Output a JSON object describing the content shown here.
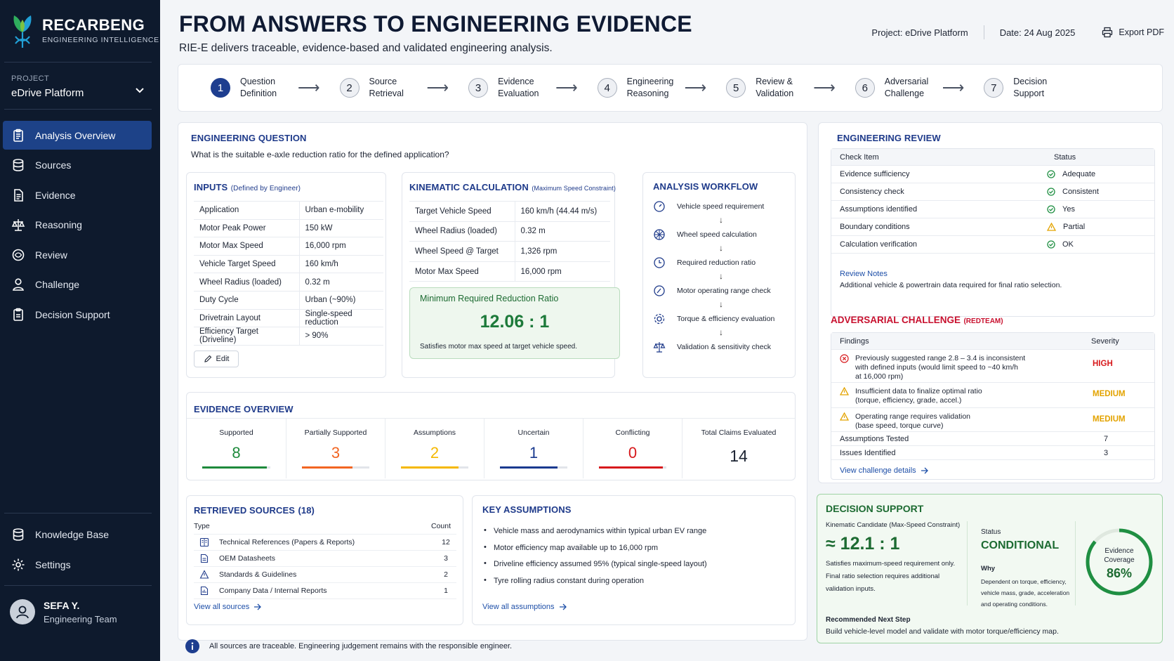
{
  "brand": {
    "name": "RECARBENG",
    "tagline": "ENGINEERING INTELLIGENCE"
  },
  "project": {
    "label": "PROJECT",
    "name": "eDrive Platform"
  },
  "nav": [
    {
      "label": "Analysis Overview",
      "icon": "clipboard-icon",
      "active": true
    },
    {
      "label": "Sources",
      "icon": "database-icon"
    },
    {
      "label": "Evidence",
      "icon": "document-icon"
    },
    {
      "label": "Reasoning",
      "icon": "balance-scale-icon"
    },
    {
      "label": "Review",
      "icon": "review-eye-icon"
    },
    {
      "label": "Challenge",
      "icon": "person-icon"
    },
    {
      "label": "Decision Support",
      "icon": "clipboard-check-icon"
    }
  ],
  "nav_bottom": [
    {
      "label": "Knowledge Base",
      "icon": "database-icon"
    },
    {
      "label": "Settings",
      "icon": "gear-icon"
    }
  ],
  "user": {
    "name": "SEFA Y.",
    "team": "Engineering Team"
  },
  "header": {
    "title": "FROM ANSWERS TO ENGINEERING EVIDENCE",
    "subtitle": "RIE-E delivers traceable, evidence-based and validated engineering analysis.",
    "project": "Project:  eDrive Platform",
    "date": "Date:  24 Aug 2025",
    "export": "Export PDF"
  },
  "steps": [
    {
      "num": "1",
      "label": "Question\nDefinition"
    },
    {
      "num": "2",
      "label": "Source\nRetrieval"
    },
    {
      "num": "3",
      "label": "Evidence\nEvaluation"
    },
    {
      "num": "4",
      "label": "Engineering\nReasoning"
    },
    {
      "num": "5",
      "label": "Review &\nValidation"
    },
    {
      "num": "6",
      "label": "Adversarial\nChallenge"
    },
    {
      "num": "7",
      "label": "Decision\nSupport"
    }
  ],
  "question": {
    "heading": "ENGINEERING QUESTION",
    "text": "What is the suitable e-axle reduction ratio for the defined application?"
  },
  "inputs": {
    "heading": "INPUTS",
    "note": "(Defined by Engineer)",
    "rows": [
      [
        "Application",
        "Urban e-mobility"
      ],
      [
        "Motor Peak Power",
        "150 kW"
      ],
      [
        "Motor Max Speed",
        "16,000 rpm"
      ],
      [
        "Vehicle Target Speed",
        "160 km/h"
      ],
      [
        "Wheel Radius (loaded)",
        "0.32 m"
      ],
      [
        "Duty Cycle",
        "Urban (~90%)"
      ],
      [
        "Drivetrain Layout",
        "Single-speed reduction"
      ],
      [
        "Efficiency Target (Driveline)",
        "> 90%"
      ]
    ],
    "edit": "Edit"
  },
  "kinematic": {
    "heading": "KINEMATIC CALCULATION",
    "note": "(Maximum Speed Constraint)",
    "rows": [
      [
        "Target Vehicle Speed",
        "160 km/h (44.44 m/s)"
      ],
      [
        "Wheel Radius (loaded)",
        "0.32 m"
      ],
      [
        "Wheel Speed @ Target",
        "1,326 rpm"
      ],
      [
        "Motor Max Speed",
        "16,000 rpm"
      ]
    ],
    "result_title": "Minimum Required Reduction Ratio",
    "result_value": "12.06 : 1",
    "result_note": "Satisfies motor max speed at target vehicle speed."
  },
  "workflow": {
    "heading": "ANALYSIS WORKFLOW",
    "steps": [
      {
        "label": "Vehicle speed requirement",
        "icon": "speedometer-icon"
      },
      {
        "label": "Wheel speed calculation",
        "icon": "wheel-icon"
      },
      {
        "label": "Required reduction ratio",
        "icon": "ratio-icon"
      },
      {
        "label": "Motor operating range check",
        "icon": "gauge-icon"
      },
      {
        "label": "Torque & efficiency evaluation",
        "icon": "gear-icon"
      },
      {
        "label": "Validation & sensitivity check",
        "icon": "balance-scale-icon"
      }
    ]
  },
  "evidence": {
    "heading": "EVIDENCE OVERVIEW",
    "items": [
      {
        "label": "Supported",
        "value": "8",
        "color": "#1e8a3c",
        "fill": 0.95
      },
      {
        "label": "Partially Supported",
        "value": "3",
        "color": "#f26522",
        "fill": 0.75
      },
      {
        "label": "Assumptions",
        "value": "2",
        "color": "#f5b800",
        "fill": 0.85
      },
      {
        "label": "Uncertain",
        "value": "1",
        "color": "#1a3a8f",
        "fill": 0.85
      },
      {
        "label": "Conflicting",
        "value": "0",
        "color": "#d7191c",
        "fill": 0.95
      }
    ],
    "total_label": "Total Claims Evaluated",
    "total_value": "14"
  },
  "sources": {
    "heading": "RETRIEVED SOURCES",
    "count": "(18)",
    "col_type": "Type",
    "col_count": "Count",
    "rows": [
      {
        "label": "Technical References (Papers & Reports)",
        "count": "12",
        "icon": "book-icon"
      },
      {
        "label": "OEM Datasheets",
        "count": "3",
        "icon": "datasheet-icon"
      },
      {
        "label": "Standards & Guidelines",
        "count": "2",
        "icon": "warning-triangle-icon"
      },
      {
        "label": "Company Data / Internal Reports",
        "count": "1",
        "icon": "report-icon"
      }
    ],
    "link": "View all sources"
  },
  "assumptions": {
    "heading": "KEY ASSUMPTIONS",
    "items": [
      "Vehicle mass and aerodynamics within typical urban EV range",
      "Motor efficiency map available up to 16,000 rpm",
      "Driveline efficiency assumed 95% (typical single-speed layout)",
      "Tyre rolling radius constant during operation"
    ],
    "link": "View all assumptions"
  },
  "footer_note": "All sources are traceable. Engineering judgement remains with the responsible engineer.",
  "review": {
    "heading": "ENGINEERING REVIEW",
    "col_item": "Check Item",
    "col_status": "Status",
    "rows": [
      {
        "item": "Evidence sufficiency",
        "status": "Adequate",
        "type": "ok"
      },
      {
        "item": "Consistency check",
        "status": "Consistent",
        "type": "ok"
      },
      {
        "item": "Assumptions identified",
        "status": "Yes",
        "type": "ok"
      },
      {
        "item": "Boundary conditions",
        "status": "Partial",
        "type": "warn"
      },
      {
        "item": "Calculation verification",
        "status": "OK",
        "type": "ok"
      }
    ],
    "notes_title": "Review Notes",
    "notes_text": "Additional vehicle & powertrain data required for final ratio selection."
  },
  "challenge": {
    "heading": "ADVERSARIAL CHALLENGE",
    "note": "(REDTEAM)",
    "col_findings": "Findings",
    "col_severity": "Severity",
    "findings": [
      {
        "text": "Previously suggested range 2.8 – 3.4 is inconsistent\nwith defined inputs (would limit speed to ~40 km/h\nat 16,000 rpm)",
        "severity": "HIGH",
        "color": "#d7191c",
        "icon": "error-circle-icon"
      },
      {
        "text": "Insufficient data to finalize optimal ratio\n(torque, efficiency, grade, accel.)",
        "severity": "MEDIUM",
        "color": "#e3a300",
        "icon": "warning-icon"
      },
      {
        "text": "Operating range requires validation\n(base speed, torque curve)",
        "severity": "MEDIUM",
        "color": "#e3a300",
        "icon": "warning-icon"
      }
    ],
    "tested_label": "Assumptions Tested",
    "tested_value": "7",
    "issues_label": "Issues Identified",
    "issues_value": "3",
    "link": "View challenge details"
  },
  "decision": {
    "heading": "DECISION SUPPORT",
    "candidate_label": "Kinematic Candidate (Max-Speed Constraint)",
    "candidate_value": "≈  12.1 : 1",
    "candidate_note": "Satisfies maximum-speed requirement only.\nFinal ratio selection requires additional\nvalidation inputs.",
    "status_label": "Status",
    "status_value": "CONDITIONAL",
    "why_label": "Why",
    "why_text": "Dependent on torque, efficiency,\nvehicle mass, grade, acceleration\nand operating conditions.",
    "coverage_label": "Evidence\nCoverage",
    "coverage_value": "86%",
    "coverage_fraction": 0.86,
    "next_label": "Recommended Next Step",
    "next_text": "Build vehicle-level model and validate with motor torque/efficiency map."
  }
}
